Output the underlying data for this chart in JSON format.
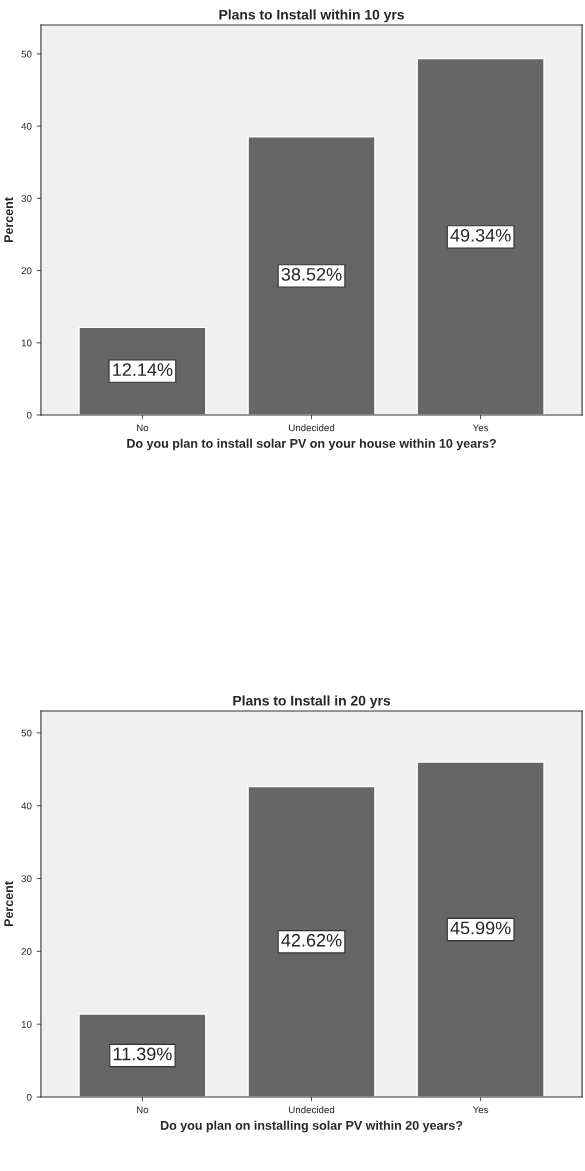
{
  "chart_data": [
    {
      "type": "bar",
      "title": "Plans to Install within 10 yrs",
      "xlabel": "Do you plan to install solar PV on your house within 10 years?",
      "ylabel": "Percent",
      "categories": [
        "No",
        "Undecided",
        "Yes"
      ],
      "values": [
        12.14,
        38.52,
        49.34
      ],
      "value_labels": [
        "12.14%",
        "38.52%",
        "49.34%"
      ],
      "color": "#666666",
      "ylim": [
        0,
        54
      ],
      "yticks": [
        0,
        10,
        20,
        30,
        40,
        50
      ],
      "grid": false
    },
    {
      "type": "bar",
      "title": "Plans to Install in 20 yrs",
      "xlabel": "Do you plan on installing solar PV within 20 years?",
      "ylabel": "Percent",
      "categories": [
        "No",
        "Undecided",
        "Yes"
      ],
      "values": [
        11.39,
        42.62,
        45.99
      ],
      "value_labels": [
        "11.39%",
        "42.62%",
        "45.99%"
      ],
      "color": "#666666",
      "ylim": [
        0,
        53
      ],
      "yticks": [
        0,
        10,
        20,
        30,
        40,
        50
      ],
      "grid": false
    }
  ]
}
